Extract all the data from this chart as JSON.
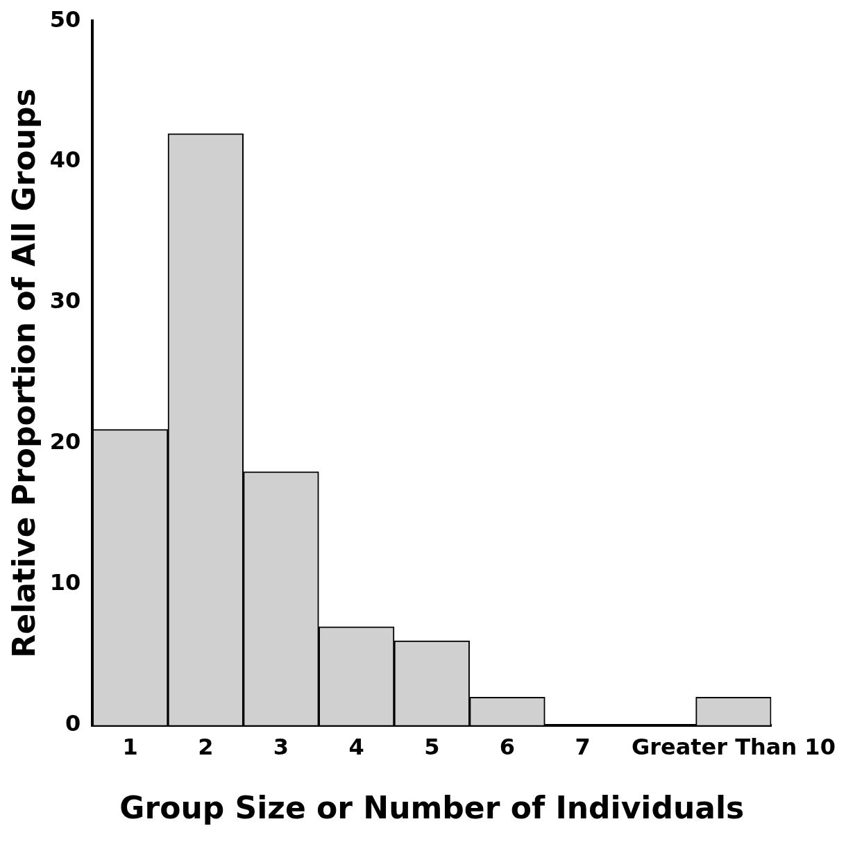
{
  "chart_data": {
    "type": "bar",
    "xlabel": "Group Size or Number of Individuals",
    "ylabel": "Relative Proportion of All Groups",
    "categories": [
      "1",
      "2",
      "3",
      "4",
      "5",
      "6",
      "7",
      null,
      "Greater Than 10"
    ],
    "values": [
      21,
      42,
      18,
      7,
      6,
      2,
      0,
      null,
      2
    ],
    "color": "#d0d0d0",
    "ylim": [
      0,
      50
    ],
    "yticks": [
      0,
      10,
      20,
      30,
      40,
      50
    ],
    "grid": false,
    "legend": false
  }
}
